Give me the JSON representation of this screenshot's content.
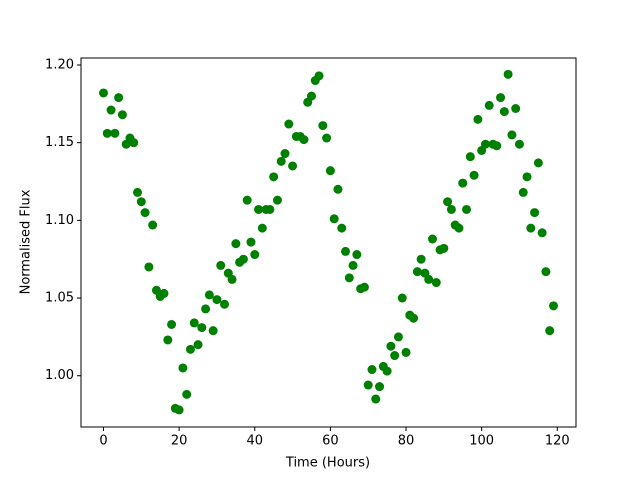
{
  "chart_data": {
    "type": "scatter",
    "xlabel": "Time (Hours)",
    "ylabel": "Normalised Flux",
    "color": "#008000",
    "grid": false,
    "x": [
      0,
      1,
      2,
      3,
      4,
      5,
      6,
      7,
      8,
      9,
      10,
      11,
      12,
      13,
      14,
      15,
      16,
      17,
      18,
      19,
      20,
      21,
      22,
      23,
      24,
      25,
      26,
      27,
      28,
      29,
      30,
      31,
      32,
      33,
      34,
      35,
      36,
      37,
      38,
      39,
      40,
      41,
      42,
      43,
      44,
      45,
      46,
      47,
      48,
      49,
      50,
      51,
      52,
      53,
      54,
      55,
      56,
      57,
      58,
      59,
      60,
      61,
      62,
      63,
      64,
      65,
      66,
      67,
      68,
      69,
      70,
      71,
      72,
      73,
      74,
      75,
      76,
      77,
      78,
      79,
      80,
      81,
      82,
      83,
      84,
      85,
      86,
      87,
      88,
      89,
      90,
      91,
      92,
      93,
      94,
      95,
      96,
      97,
      98,
      99,
      100,
      101,
      102,
      103,
      104,
      105,
      106,
      107,
      108,
      109,
      110,
      111,
      112,
      113,
      114,
      115,
      116,
      117,
      118,
      119
    ],
    "values": [
      1.182,
      1.156,
      1.171,
      1.156,
      1.179,
      1.168,
      1.149,
      1.153,
      1.15,
      1.118,
      1.112,
      1.105,
      1.07,
      1.097,
      1.055,
      1.051,
      1.053,
      1.023,
      1.033,
      0.979,
      0.978,
      1.005,
      0.988,
      1.017,
      1.034,
      1.02,
      1.031,
      1.043,
      1.052,
      1.029,
      1.049,
      1.071,
      1.046,
      1.066,
      1.062,
      1.085,
      1.073,
      1.075,
      1.113,
      1.086,
      1.078,
      1.107,
      1.095,
      1.107,
      1.107,
      1.128,
      1.113,
      1.138,
      1.143,
      1.162,
      1.135,
      1.154,
      1.154,
      1.152,
      1.176,
      1.18,
      1.19,
      1.193,
      1.161,
      1.153,
      1.132,
      1.101,
      1.12,
      1.095,
      1.08,
      1.063,
      1.071,
      1.078,
      1.056,
      1.057,
      0.994,
      1.004,
      0.985,
      0.993,
      1.006,
      1.003,
      1.019,
      1.013,
      1.025,
      1.05,
      1.015,
      1.039,
      1.037,
      1.067,
      1.075,
      1.066,
      1.062,
      1.088,
      1.06,
      1.081,
      1.082,
      1.112,
      1.107,
      1.097,
      1.095,
      1.124,
      1.107,
      1.141,
      1.129,
      1.165,
      1.145,
      1.149,
      1.174,
      1.149,
      1.148,
      1.179,
      1.17,
      1.194,
      1.155,
      1.172,
      1.149,
      1.118,
      1.128,
      1.095,
      1.105,
      1.137,
      1.092,
      1.067,
      1.029,
      1.045
    ],
    "xlim": [
      -5.95,
      124.95
    ],
    "xticks": [
      0,
      20,
      40,
      60,
      80,
      100,
      120
    ],
    "ylim": [
      0.967,
      1.2045
    ],
    "yticks": [
      {
        "value": 1.0,
        "label": "1.00"
      },
      {
        "value": 1.05,
        "label": "1.05"
      },
      {
        "value": 1.1,
        "label": "1.10"
      },
      {
        "value": 1.15,
        "label": "1.15"
      },
      {
        "value": 1.2,
        "label": "1.20"
      }
    ]
  }
}
